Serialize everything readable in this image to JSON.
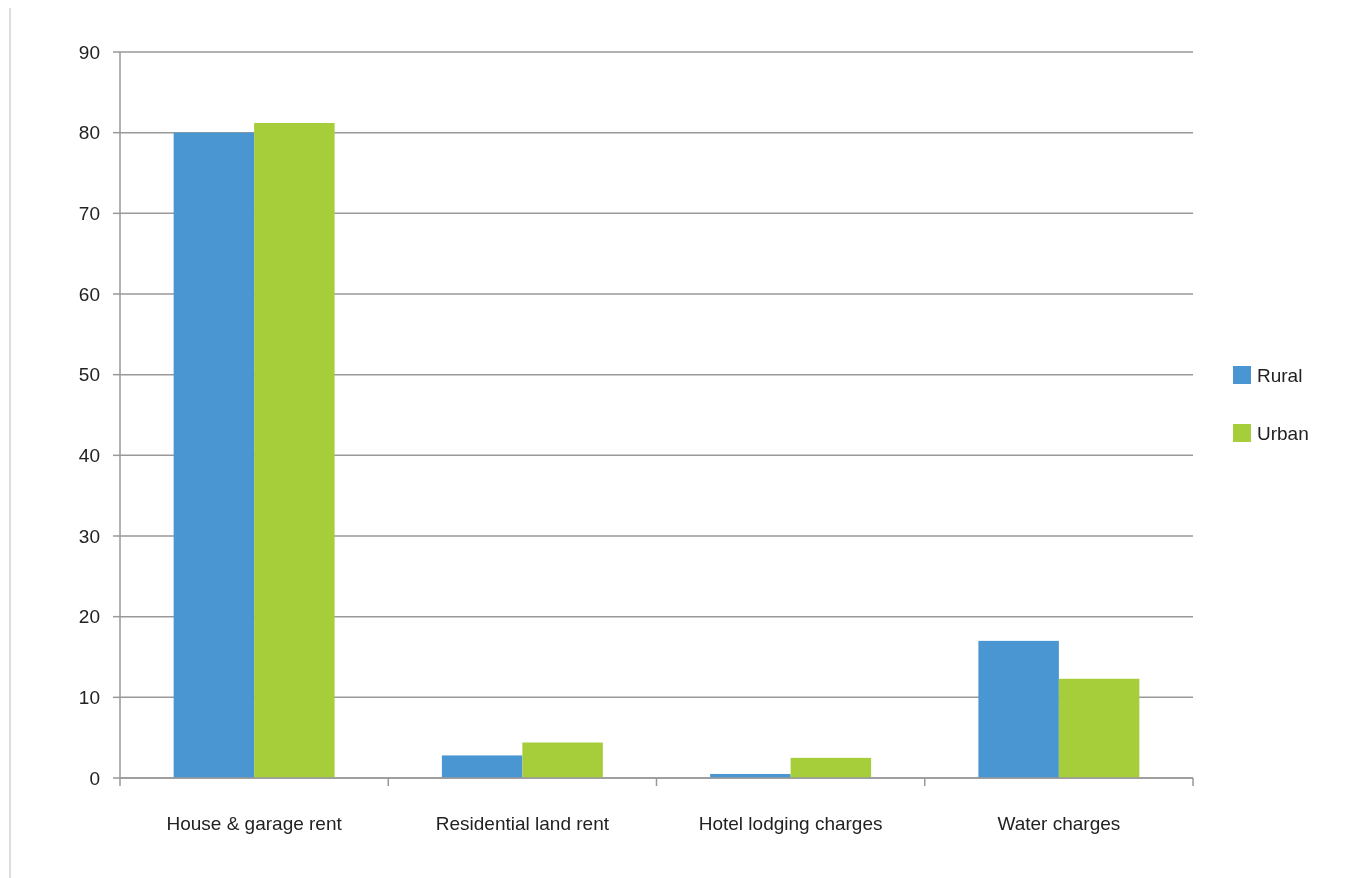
{
  "chart_data": {
    "type": "bar",
    "categories": [
      "House & garage rent",
      "Residential land rent",
      "Hotel lodging charges",
      "Water charges"
    ],
    "series": [
      {
        "name": "Rural",
        "color": "#4a96d2",
        "values": [
          80,
          2.8,
          0.5,
          17
        ]
      },
      {
        "name": "Urban",
        "color": "#a6cd3a",
        "values": [
          81.2,
          4.4,
          2.5,
          12.3
        ]
      }
    ],
    "ylim": [
      0,
      90
    ],
    "yticks": [
      0,
      10,
      20,
      30,
      40,
      50,
      60,
      70,
      80,
      90
    ],
    "grid": "y",
    "legend": "right"
  }
}
